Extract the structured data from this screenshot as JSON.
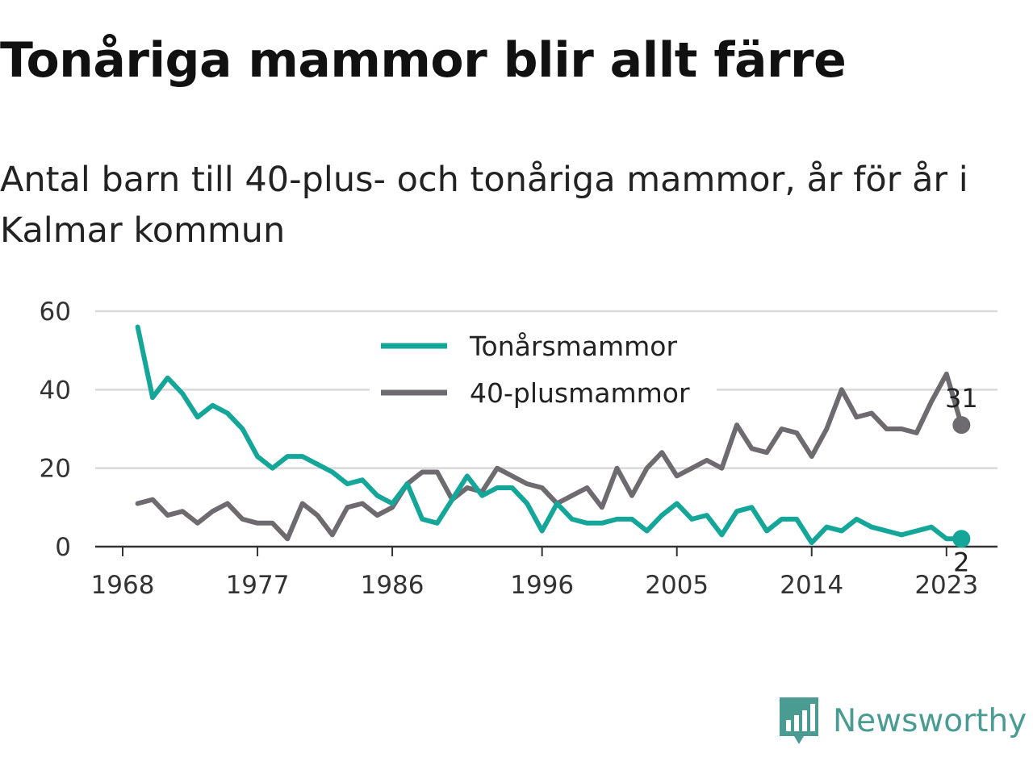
{
  "title": "Tonåriga mammor blir allt färre",
  "subtitle": "Antal barn till 40-plus- och tonåriga mammor, år för år i Kalmar kommun",
  "brand": "Newsworthy",
  "colors": {
    "teen": "#13a699",
    "forty": "#6d6b70",
    "grid": "#d9d9d9",
    "axis": "#333333",
    "brand": "#4a9c92"
  },
  "chart_data": {
    "type": "line",
    "x": [
      1969,
      1970,
      1971,
      1972,
      1973,
      1974,
      1975,
      1976,
      1977,
      1978,
      1979,
      1980,
      1981,
      1982,
      1983,
      1984,
      1985,
      1986,
      1987,
      1988,
      1989,
      1990,
      1991,
      1992,
      1993,
      1994,
      1995,
      1996,
      1997,
      1998,
      1999,
      2000,
      2001,
      2002,
      2003,
      2004,
      2005,
      2006,
      2007,
      2008,
      2009,
      2010,
      2011,
      2012,
      2013,
      2014,
      2015,
      2016,
      2017,
      2018,
      2019,
      2020,
      2021,
      2022,
      2023,
      2024
    ],
    "xticks": [
      "1968",
      "1977",
      "1986",
      "1996",
      "2005",
      "2014",
      "2023"
    ],
    "xlim": [
      1968,
      2024
    ],
    "ylim": [
      0,
      60
    ],
    "yticks": [
      "0",
      "20",
      "40",
      "60"
    ],
    "grid": true,
    "legend_position": "top-center",
    "series": [
      {
        "name": "Tonårsmammor",
        "color": "#13a699",
        "end_label": "2",
        "values": [
          56,
          38,
          43,
          39,
          33,
          36,
          34,
          30,
          23,
          20,
          23,
          23,
          21,
          19,
          16,
          17,
          13,
          11,
          16,
          7,
          6,
          12,
          18,
          13,
          15,
          15,
          11,
          4,
          11,
          7,
          6,
          6,
          7,
          7,
          4,
          8,
          11,
          7,
          8,
          3,
          9,
          10,
          4,
          7,
          7,
          1,
          5,
          4,
          7,
          5,
          4,
          3,
          4,
          5,
          2,
          2
        ]
      },
      {
        "name": "40-plusmammor",
        "color": "#6d6b70",
        "end_label": "31",
        "values": [
          11,
          12,
          8,
          9,
          6,
          9,
          11,
          7,
          6,
          6,
          2,
          11,
          8,
          3,
          10,
          11,
          8,
          10,
          16,
          19,
          19,
          12,
          15,
          14,
          20,
          18,
          16,
          15,
          11,
          13,
          15,
          10,
          20,
          13,
          20,
          24,
          18,
          20,
          22,
          20,
          31,
          25,
          24,
          30,
          29,
          23,
          30,
          40,
          33,
          34,
          30,
          30,
          29,
          37,
          44,
          31
        ]
      }
    ]
  }
}
